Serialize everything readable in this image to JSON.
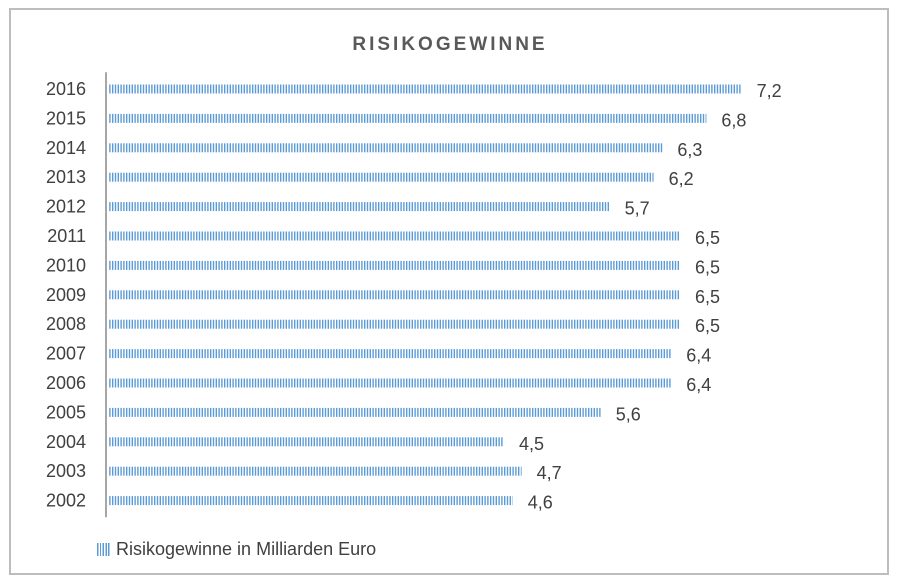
{
  "chart_data": {
    "type": "bar",
    "orientation": "horizontal",
    "title": "RISIKOGEWINNE",
    "categories": [
      "2016",
      "2015",
      "2014",
      "2013",
      "2012",
      "2011",
      "2010",
      "2009",
      "2008",
      "2007",
      "2006",
      "2005",
      "2004",
      "2003",
      "2002"
    ],
    "values": [
      7.2,
      6.8,
      6.3,
      6.2,
      5.7,
      6.5,
      6.5,
      6.5,
      6.5,
      6.4,
      6.4,
      5.6,
      4.5,
      4.7,
      4.6
    ],
    "value_labels": [
      "7,2",
      "6,8",
      "6,3",
      "6,2",
      "5,7",
      "6,5",
      "6,5",
      "6,5",
      "6,5",
      "6,4",
      "6,4",
      "5,6",
      "4,5",
      "4,7",
      "4,6"
    ],
    "series": [
      {
        "name": "Risikogewinne in Milliarden Euro"
      }
    ],
    "xlabel": "",
    "ylabel": "",
    "legend_position": "bottom-left",
    "grid": false,
    "bar_color": "#5b9bd5",
    "bar_pattern": "vertical-stripes"
  }
}
